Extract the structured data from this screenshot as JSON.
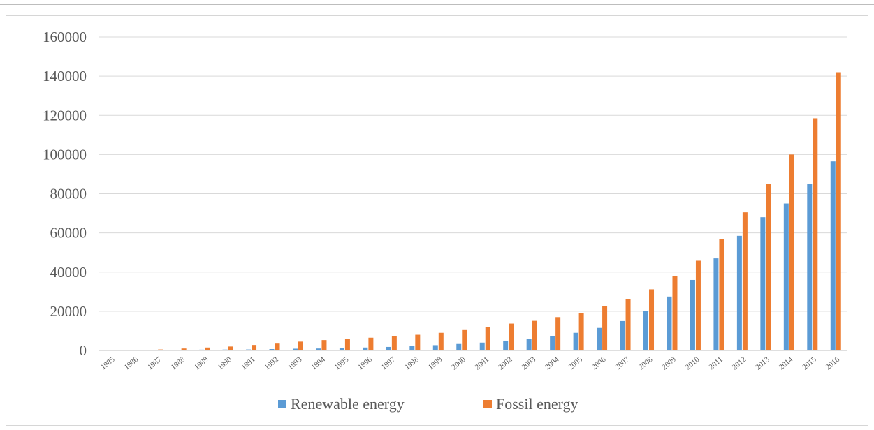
{
  "colors": {
    "renewable": "#5b9bd5",
    "fossil": "#ed7d31",
    "gridline": "#d9d9d9",
    "axis": "#bfbfbf",
    "text": "#595959"
  },
  "chart_data": {
    "type": "bar",
    "categories": [
      "1985",
      "1986",
      "1987",
      "1988",
      "1989",
      "1990",
      "1991",
      "1992",
      "1993",
      "1994",
      "1995",
      "1996",
      "1997",
      "1998",
      "1999",
      "2000",
      "2001",
      "2002",
      "2003",
      "2004",
      "2005",
      "2006",
      "2007",
      "2008",
      "2009",
      "2010",
      "2011",
      "2012",
      "2013",
      "2014",
      "2015",
      "2016"
    ],
    "series": [
      {
        "name": "Renewable energy",
        "values": [
          0,
          0,
          300,
          350,
          400,
          450,
          500,
          700,
          900,
          1000,
          1200,
          1500,
          1800,
          2200,
          2700,
          3300,
          4000,
          5000,
          5800,
          7200,
          9000,
          11500,
          15000,
          20000,
          27500,
          36000,
          47000,
          58500,
          68000,
          75000,
          85000,
          96500
        ]
      },
      {
        "name": "Fossil energy",
        "values": [
          0,
          0,
          500,
          1000,
          1500,
          2000,
          2800,
          3500,
          4500,
          5300,
          5800,
          6500,
          7200,
          8000,
          9000,
          10400,
          11900,
          13700,
          15100,
          17000,
          19200,
          22600,
          26200,
          31200,
          38000,
          45800,
          57000,
          70500,
          85000,
          100000,
          118500,
          142000
        ]
      }
    ],
    "ylim": [
      0,
      160000
    ],
    "yticks": [
      "0",
      "20000",
      "40000",
      "60000",
      "80000",
      "100000",
      "120000",
      "140000",
      "160000"
    ],
    "grid": true,
    "legend_position": "bottom"
  }
}
